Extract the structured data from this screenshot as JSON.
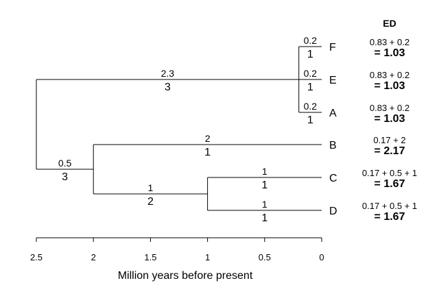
{
  "tree": {
    "tips": [
      {
        "name": "F",
        "ed_expr": "0.83 + 0.2",
        "ed_value": "= 1.03"
      },
      {
        "name": "E",
        "ed_expr": "0.83 + 0.2",
        "ed_value": "= 1.03"
      },
      {
        "name": "A",
        "ed_expr": "0.83 + 0.2",
        "ed_value": "= 1.03"
      },
      {
        "name": "B",
        "ed_expr": "0.17 + 2",
        "ed_value": "= 2.17"
      },
      {
        "name": "C",
        "ed_expr": "0.17 + 0.5 + 1",
        "ed_value": "= 1.67"
      },
      {
        "name": "D",
        "ed_expr": "0.17 + 0.5 + 1",
        "ed_value": "= 1.67"
      }
    ],
    "nodes": [
      {
        "id": "root",
        "age": 2.5
      },
      {
        "id": "n_bcd",
        "age": 2.0
      },
      {
        "id": "n_cd",
        "age": 1.0
      },
      {
        "id": "n_fea",
        "age": 0.2
      }
    ],
    "branches": [
      {
        "from": "root",
        "to": "n_fea",
        "length_label": "2.3",
        "count_label": "3",
        "count_color": "#cc0000"
      },
      {
        "from": "root",
        "to": "n_bcd",
        "length_label": "0.5",
        "count_label": "3"
      },
      {
        "from": "n_bcd",
        "to": "B",
        "length_label": "2",
        "count_label": "1"
      },
      {
        "from": "n_bcd",
        "to": "n_cd",
        "length_label": "1",
        "count_label": "2"
      },
      {
        "from": "n_cd",
        "to": "C",
        "length_label": "1",
        "count_label": "1"
      },
      {
        "from": "n_cd",
        "to": "D",
        "length_label": "1",
        "count_label": "1"
      },
      {
        "from": "n_fea",
        "to": "F",
        "length_label": "0.2",
        "count_label": "1"
      },
      {
        "from": "n_fea",
        "to": "E",
        "length_label": "0.2",
        "count_label": "1"
      },
      {
        "from": "n_fea",
        "to": "A",
        "length_label": "0.2",
        "count_label": "1"
      }
    ]
  },
  "ed_header": "ED",
  "axis": {
    "label": "Million years before present",
    "ticks": [
      "2.5",
      "2",
      "1.5",
      "1",
      "0.5",
      "0"
    ],
    "range": [
      2.5,
      0
    ]
  },
  "colors": {
    "line": "#000000",
    "highlight": "#cc0000"
  }
}
